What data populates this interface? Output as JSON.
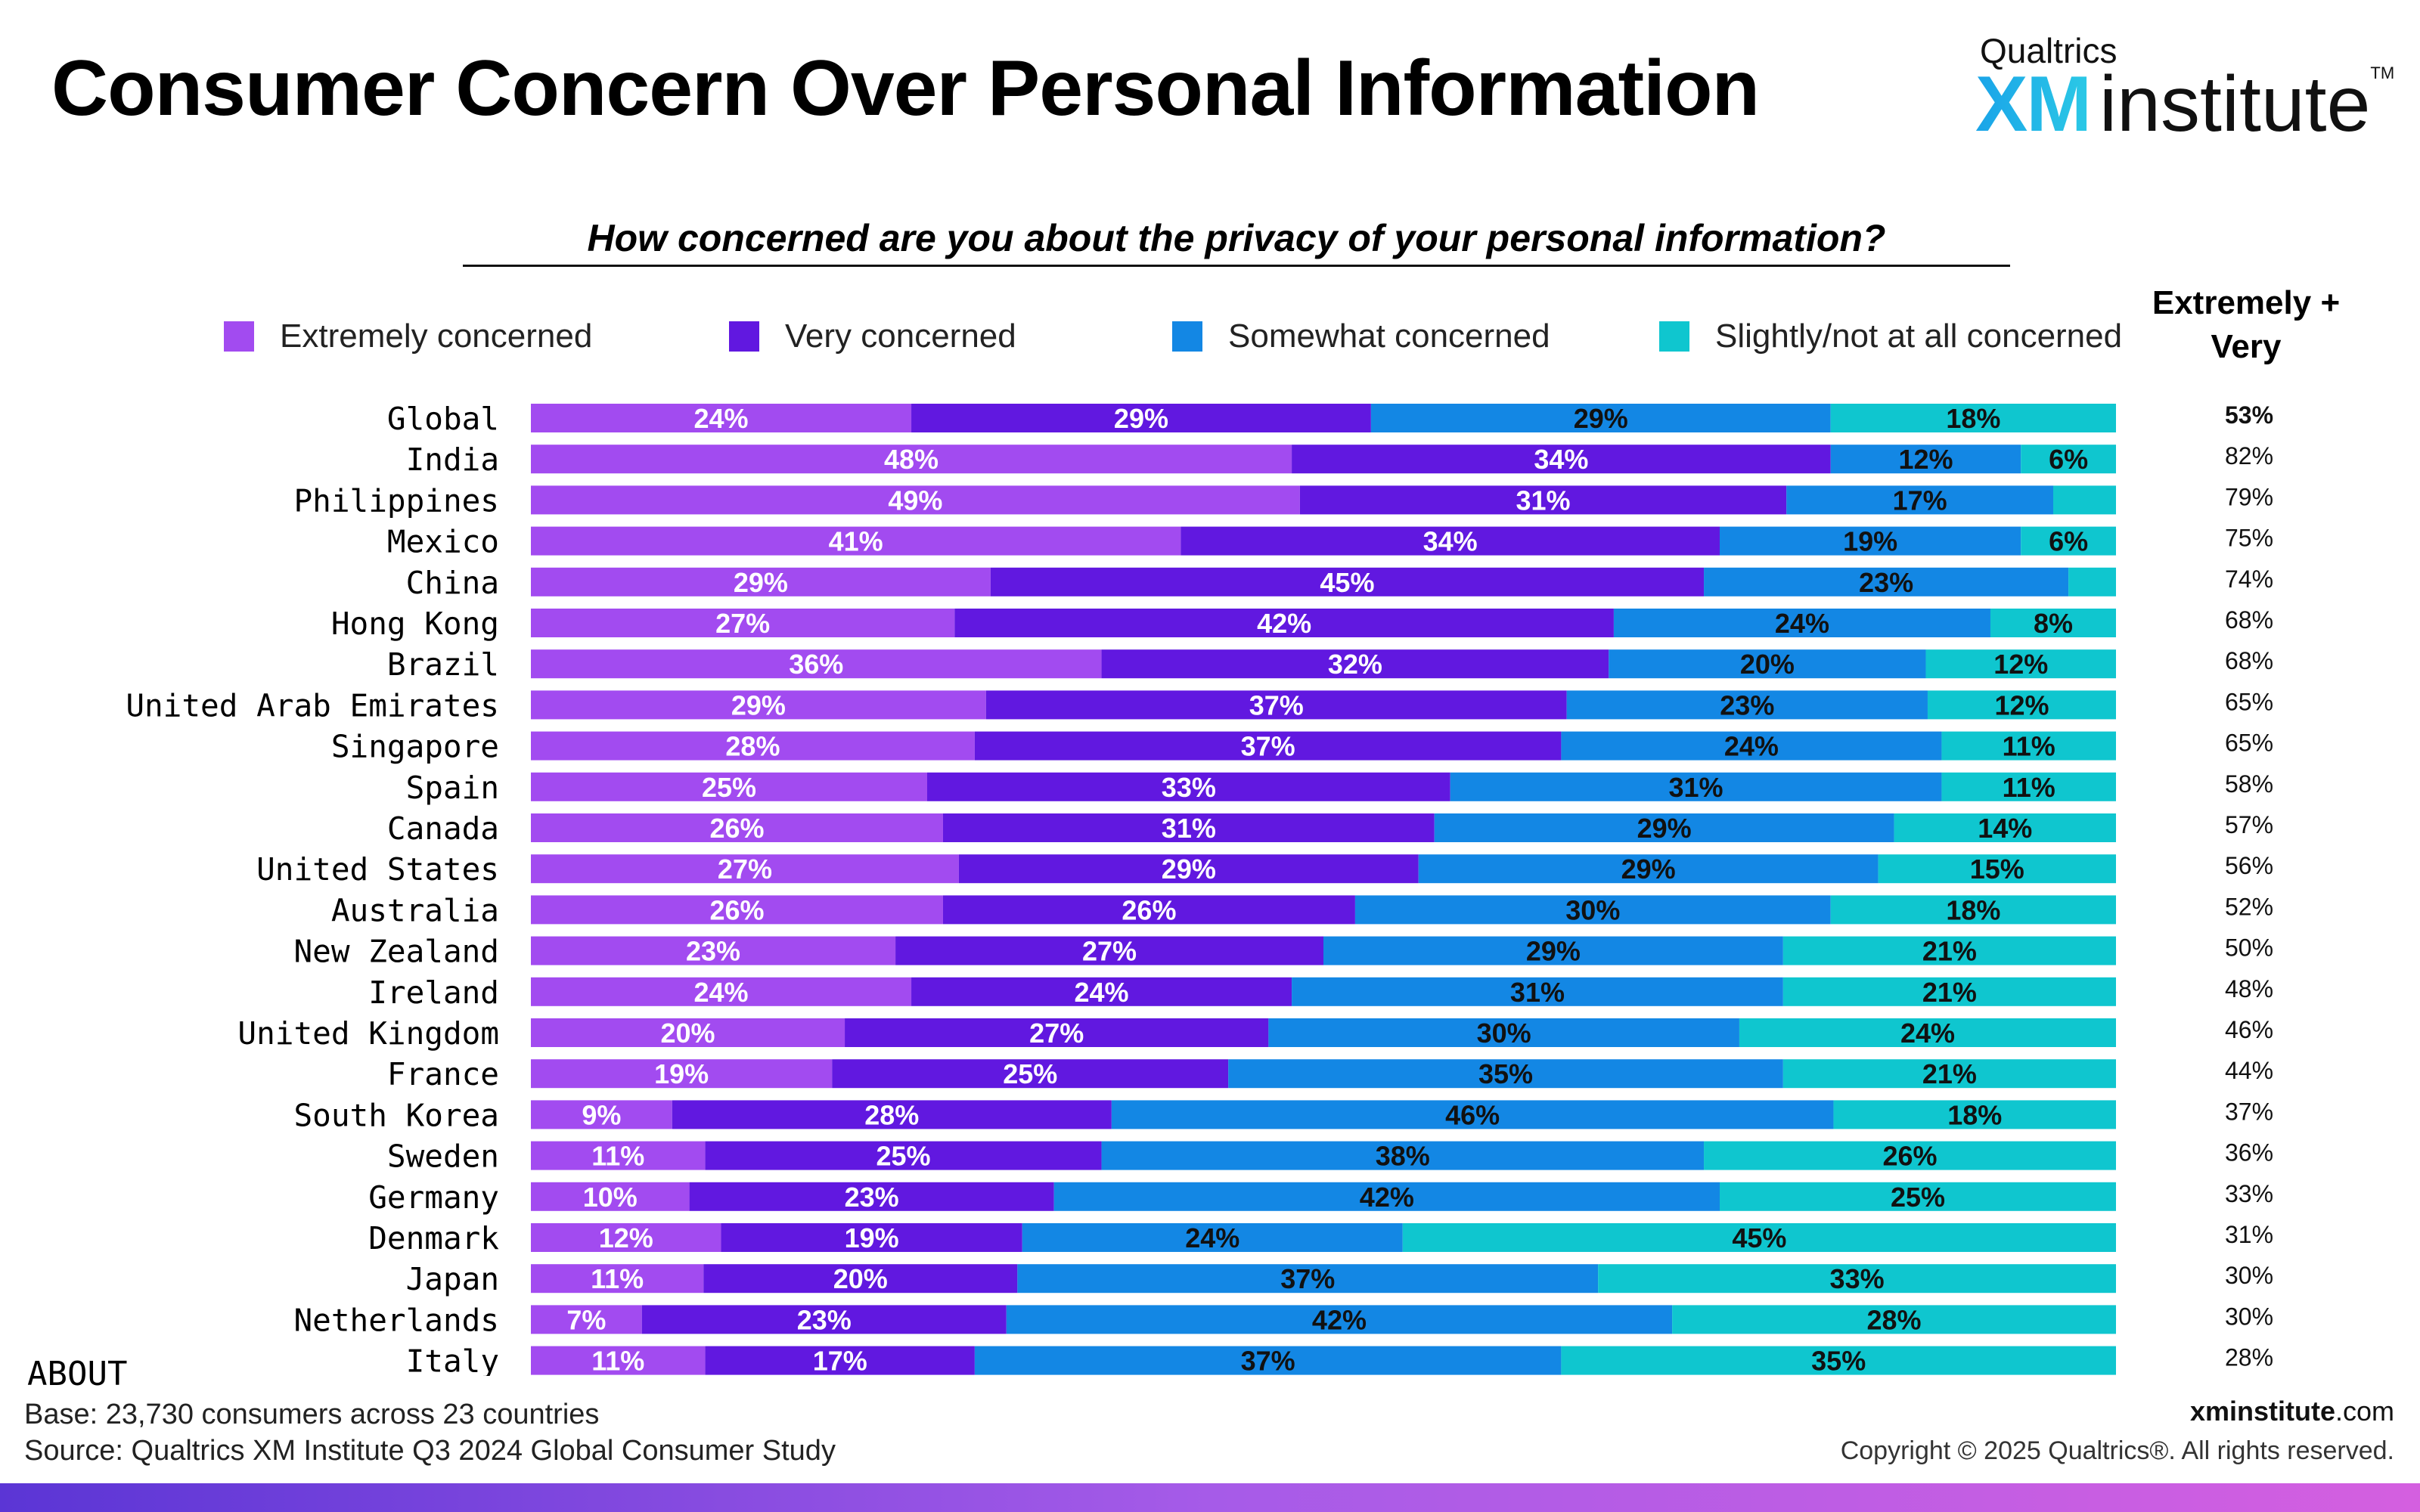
{
  "header": {
    "title": "Consumer Concern Over Personal Information",
    "brand_top": "Qualtrics",
    "brand_xm": "XM",
    "brand_institute": "institute",
    "brand_tm": "TM"
  },
  "ev_header": {
    "line1": "Extremely +",
    "line2": "Very"
  },
  "colors": {
    "extremely": "#a24bf0",
    "very": "#6118e0",
    "somewhat": "#1387e4",
    "slightly": "#0fc6cf"
  },
  "chart_data": {
    "type": "bar",
    "orientation": "horizontal",
    "stacked": true,
    "title": "How concerned are you about the privacy of your personal information?",
    "series_names": [
      "Extremely concerned",
      "Very concerned",
      "Somewhat concerned",
      "Slightly/not at all concerned"
    ],
    "xlim": [
      0,
      100
    ],
    "legend_position": "top",
    "rows": [
      {
        "label": "Global",
        "values": [
          24,
          29,
          29,
          18
        ],
        "ev": "53%"
      },
      {
        "label": "India",
        "values": [
          48,
          34,
          12,
          6
        ],
        "ev": "82%"
      },
      {
        "label": "Philippines",
        "values": [
          49,
          31,
          17,
          4
        ],
        "ev": "79%"
      },
      {
        "label": "Mexico",
        "values": [
          41,
          34,
          19,
          6
        ],
        "ev": "75%"
      },
      {
        "label": "China",
        "values": [
          29,
          45,
          23,
          3
        ],
        "ev": "74%"
      },
      {
        "label": "Hong Kong",
        "values": [
          27,
          42,
          24,
          8
        ],
        "ev": "68%"
      },
      {
        "label": "Brazil",
        "values": [
          36,
          32,
          20,
          12
        ],
        "ev": "68%"
      },
      {
        "label": "United Arab Emirates",
        "values": [
          29,
          37,
          23,
          12
        ],
        "ev": "65%"
      },
      {
        "label": "Singapore",
        "values": [
          28,
          37,
          24,
          11
        ],
        "ev": "65%"
      },
      {
        "label": "Spain",
        "values": [
          25,
          33,
          31,
          11
        ],
        "ev": "58%"
      },
      {
        "label": "Canada",
        "values": [
          26,
          31,
          29,
          14
        ],
        "ev": "57%"
      },
      {
        "label": "United States",
        "values": [
          27,
          29,
          29,
          15
        ],
        "ev": "56%"
      },
      {
        "label": "Australia",
        "values": [
          26,
          26,
          30,
          18
        ],
        "ev": "52%"
      },
      {
        "label": "New Zealand",
        "values": [
          23,
          27,
          29,
          21
        ],
        "ev": "50%"
      },
      {
        "label": "Ireland",
        "values": [
          24,
          24,
          31,
          21
        ],
        "ev": "48%"
      },
      {
        "label": "United Kingdom",
        "values": [
          20,
          27,
          30,
          24
        ],
        "ev": "46%"
      },
      {
        "label": "France",
        "values": [
          19,
          25,
          35,
          21
        ],
        "ev": "44%"
      },
      {
        "label": "South Korea",
        "values": [
          9,
          28,
          46,
          18
        ],
        "ev": "37%"
      },
      {
        "label": "Sweden",
        "values": [
          11,
          25,
          38,
          26
        ],
        "ev": "36%"
      },
      {
        "label": "Germany",
        "values": [
          10,
          23,
          42,
          25
        ],
        "ev": "33%"
      },
      {
        "label": "Denmark",
        "values": [
          12,
          19,
          24,
          45
        ],
        "ev": "31%"
      },
      {
        "label": "Japan",
        "values": [
          11,
          20,
          37,
          33
        ],
        "ev": "30%"
      },
      {
        "label": "Netherlands",
        "values": [
          7,
          23,
          42,
          28
        ],
        "ev": "30%"
      },
      {
        "label": "Italy",
        "values": [
          11,
          17,
          37,
          35
        ],
        "ev": "28%"
      }
    ]
  },
  "footer": {
    "about": "ABOUT",
    "base": "Base: 23,730 consumers across 23 countries",
    "source": "Source: Qualtrics XM Institute Q3 2024 Global Consumer Study",
    "site_bold": "xminstitute",
    "site_rest": ".com",
    "copyright": "Copyright © 2025 Qualtrics®. All rights reserved."
  }
}
